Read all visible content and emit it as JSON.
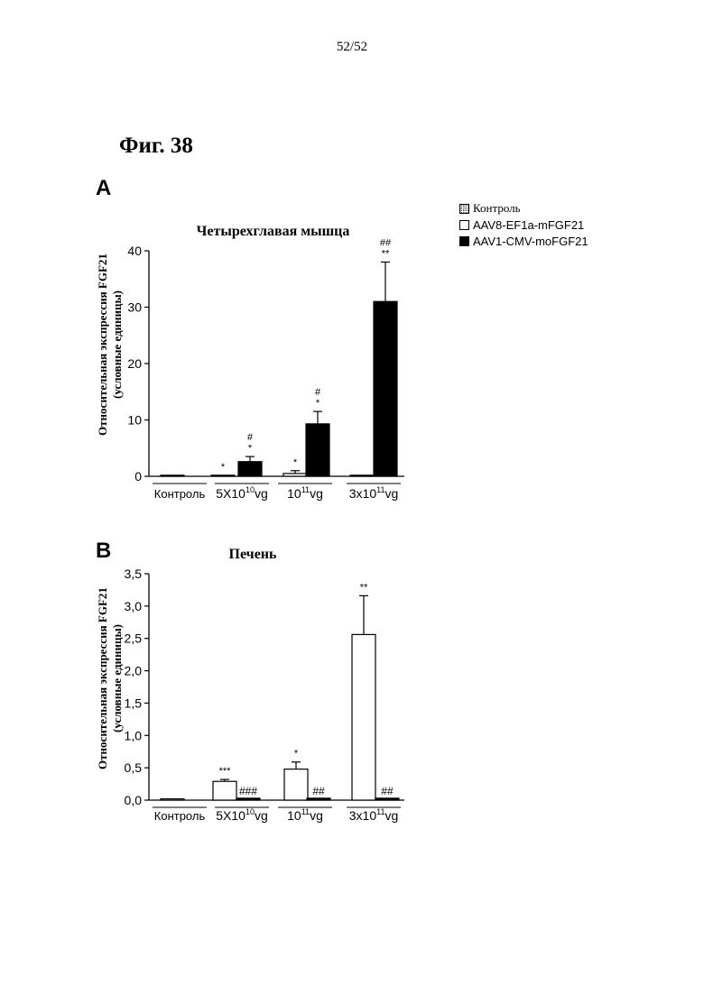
{
  "page": {
    "number": "52/52",
    "figure_title": "Фиг. 38"
  },
  "legend": {
    "items": [
      {
        "label": "Контроль",
        "swatch": "dotted"
      },
      {
        "label": "AAV8-EF1a-mFGF21",
        "swatch": "white"
      },
      {
        "label": "AAV1-CMV-moFGF21",
        "swatch": "black"
      }
    ]
  },
  "chart_data": [
    {
      "panel": "A",
      "type": "bar",
      "title": "Четырехглавая мышца",
      "ylabel_line1": "Относительная экспрессия FGF21",
      "ylabel_line2": "(условные единицы)",
      "ylim": [
        0,
        40
      ],
      "yticks": [
        "0",
        "10",
        "20",
        "30",
        "40"
      ],
      "categories": [
        "Контроль",
        "5X10^10vg",
        "10^11vg",
        "3x10^11vg"
      ],
      "series": [
        {
          "name": "Контроль",
          "color": "#ffffff",
          "values": [
            0,
            null,
            null,
            null
          ],
          "errors": [
            0,
            null,
            null,
            null
          ],
          "marks": [
            "",
            "",
            "",
            ""
          ]
        },
        {
          "name": "AAV8-EF1a-mFGF21",
          "color": "#ffffff",
          "values": [
            null,
            0.1,
            0.5,
            0.1
          ],
          "errors": [
            null,
            0,
            0.5,
            0
          ],
          "marks": [
            "",
            "*",
            "*",
            ""
          ]
        },
        {
          "name": "AAV1-CMV-moFGF21",
          "color": "#000000",
          "values": [
            null,
            2.6,
            9.3,
            31
          ],
          "errors": [
            null,
            0.9,
            2.2,
            7
          ],
          "marks": [
            "",
            "#|*",
            "#|*",
            "##|**"
          ]
        }
      ]
    },
    {
      "panel": "B",
      "type": "bar",
      "title": "Печень",
      "ylabel_line1": "Относительная экспрессия FGF21",
      "ylabel_line2": "(условные единицы)",
      "ylim": [
        0,
        3.5
      ],
      "yticks": [
        "0,0",
        "0,5",
        "1,0",
        "1,5",
        "2,0",
        "2,5",
        "3,0",
        "3,5"
      ],
      "categories": [
        "Контроль",
        "5X10^10vg",
        "10^11vg",
        "3x10^11vg"
      ],
      "series": [
        {
          "name": "Контроль",
          "color": "#ffffff",
          "values": [
            0.02,
            null,
            null,
            null
          ],
          "errors": [
            0,
            null,
            null,
            null
          ],
          "marks": [
            "",
            "",
            "",
            ""
          ]
        },
        {
          "name": "AAV8-EF1a-mFGF21",
          "color": "#ffffff",
          "values": [
            null,
            0.29,
            0.48,
            2.56
          ],
          "errors": [
            null,
            0.03,
            0.11,
            0.6
          ],
          "marks": [
            "",
            "***",
            "*",
            "**"
          ]
        },
        {
          "name": "AAV1-CMV-moFGF21",
          "color": "#000000",
          "values": [
            null,
            0.03,
            0.03,
            0.03
          ],
          "errors": [
            null,
            0,
            0,
            0
          ],
          "marks": [
            "",
            "###",
            "##",
            "##"
          ]
        }
      ]
    }
  ]
}
